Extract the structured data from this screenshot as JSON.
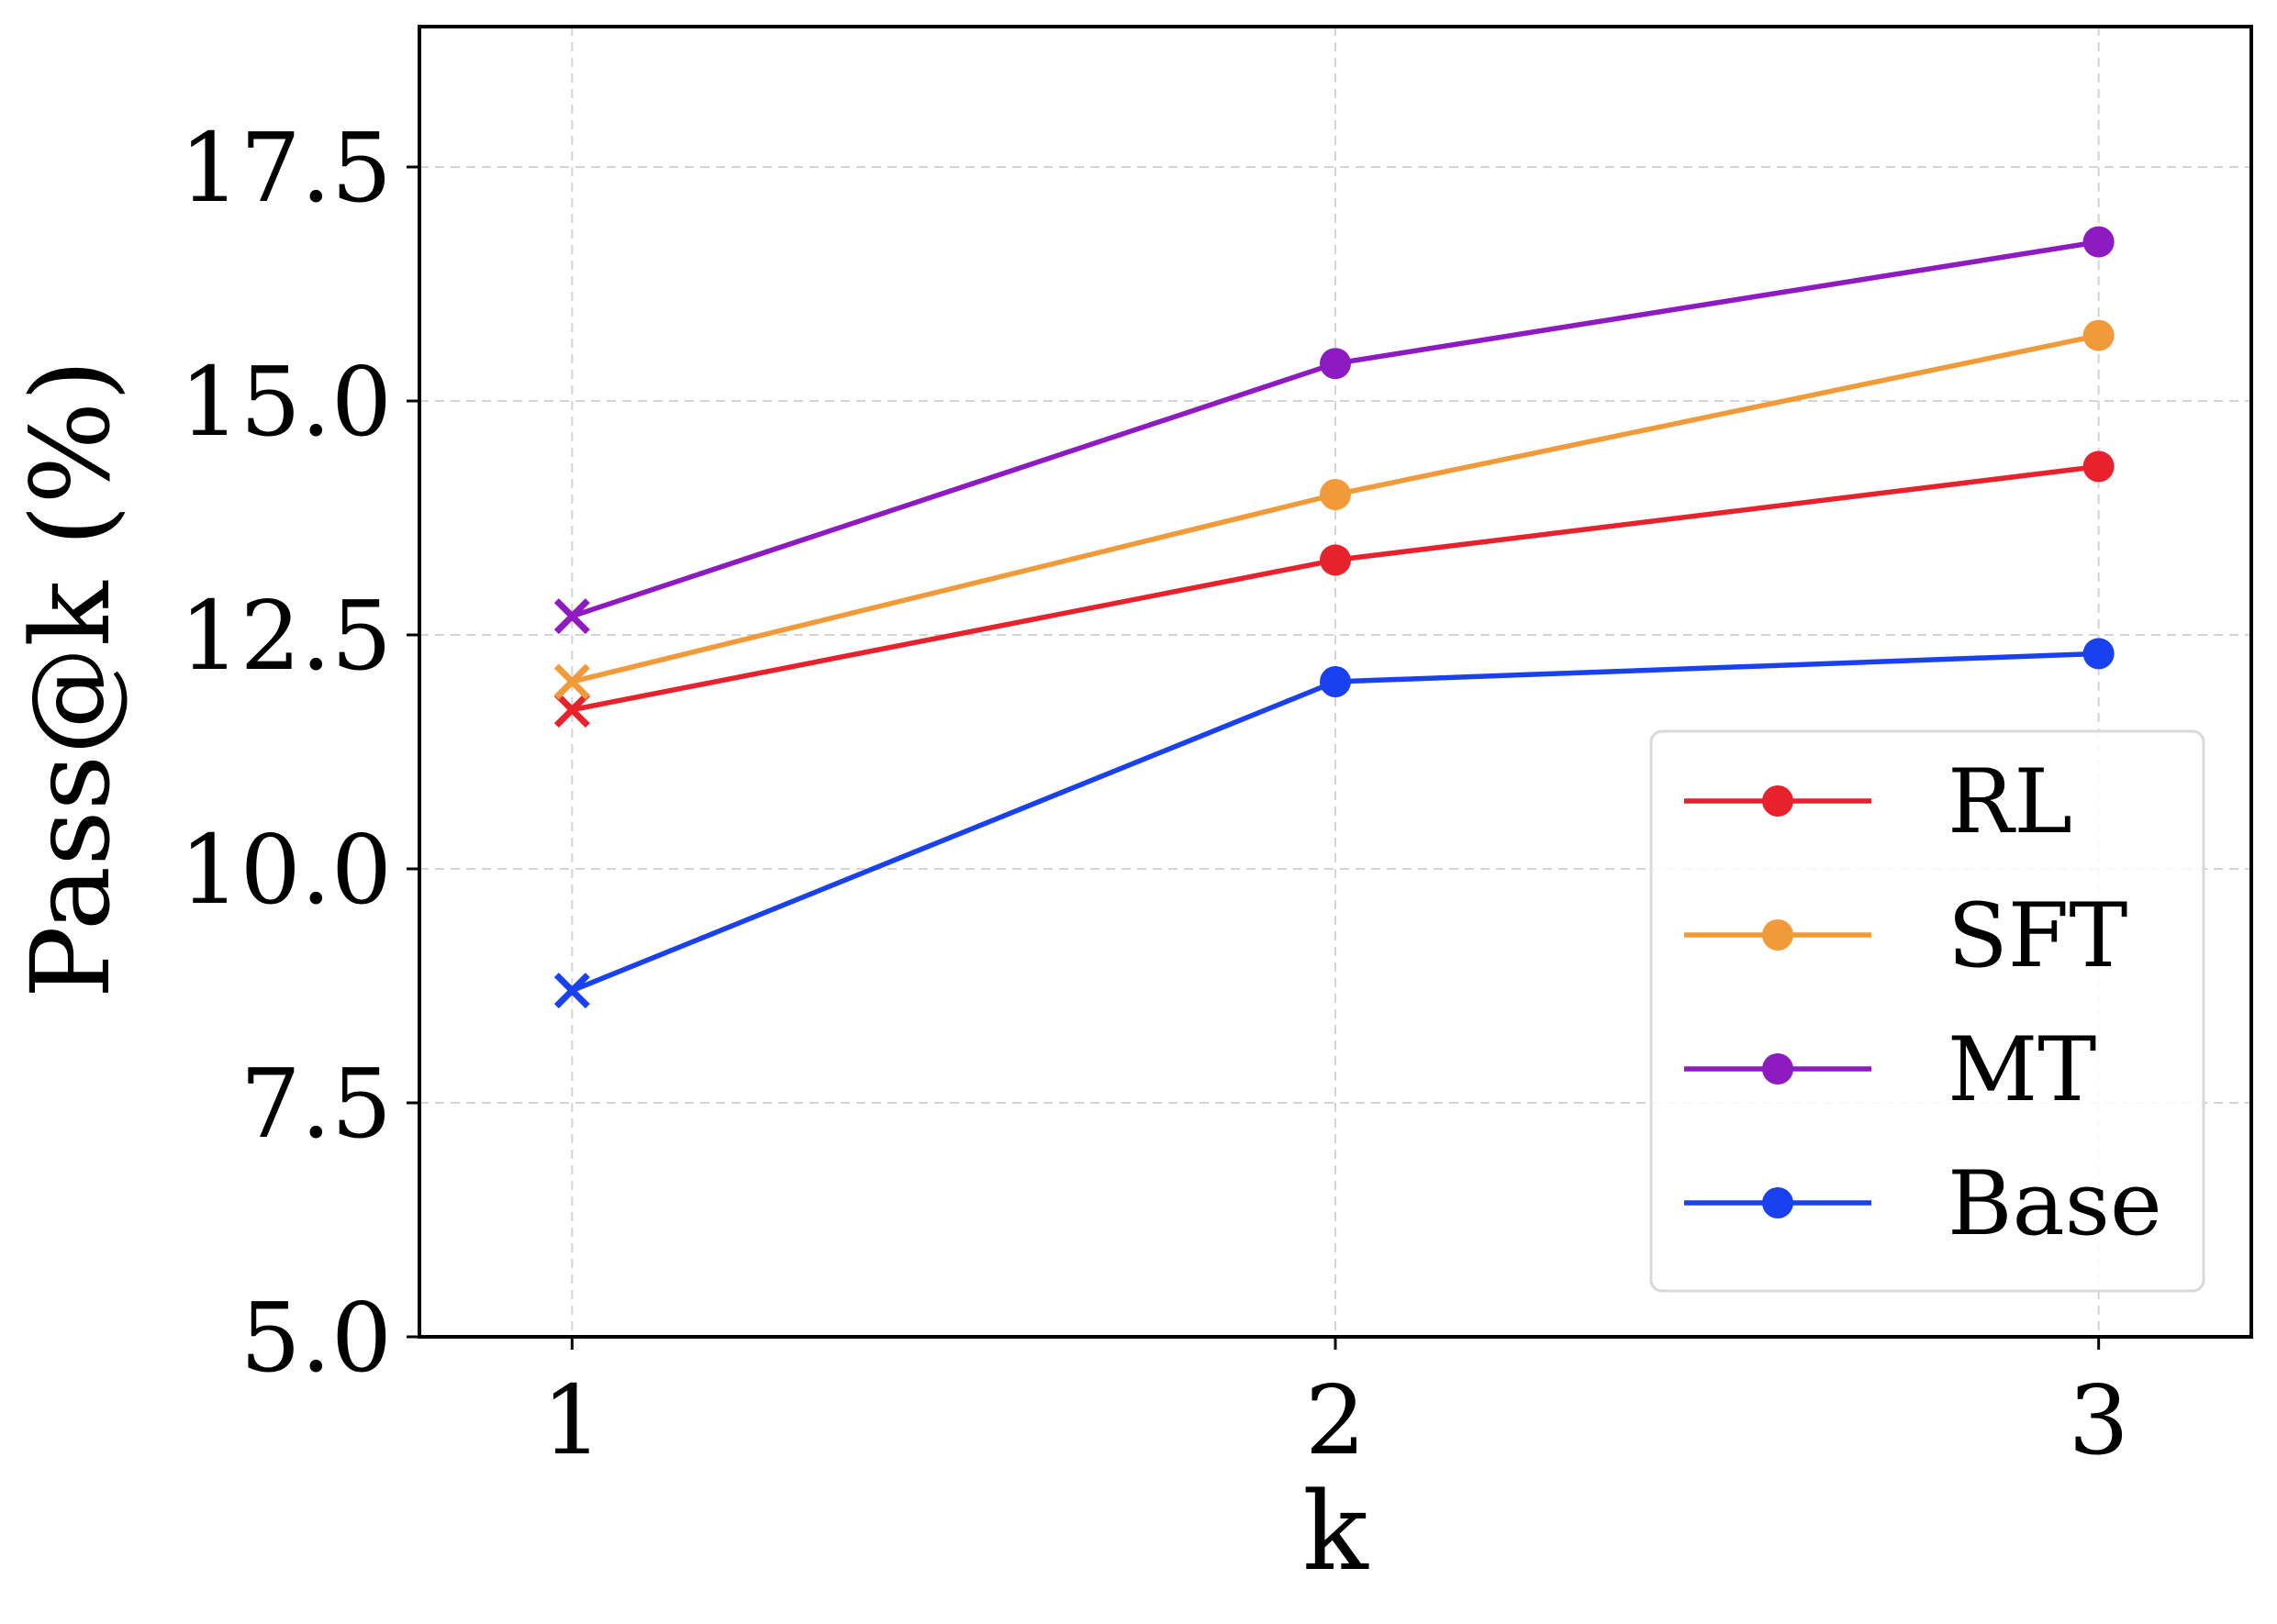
{
  "chart_data": {
    "type": "line",
    "xlabel": "k",
    "ylabel": "Pass@k (%)",
    "x": [
      1,
      2,
      3
    ],
    "xlim": [
      0.8,
      3.2
    ],
    "ylim": [
      5.0,
      19.0
    ],
    "xticks": [
      "1",
      "2",
      "3"
    ],
    "yticks": [
      "5.0",
      "7.5",
      "10.0",
      "12.5",
      "15.0",
      "17.5"
    ],
    "grid": true,
    "legend_position": "lower right",
    "series": [
      {
        "name": "RL",
        "color": "#e8222c",
        "values": [
          11.7,
          13.3,
          14.3
        ],
        "first_marker": "x",
        "marker": "circle"
      },
      {
        "name": "SFT",
        "color": "#f09a3a",
        "values": [
          12.0,
          14.0,
          15.7
        ],
        "first_marker": "x",
        "marker": "circle"
      },
      {
        "name": "MT",
        "color": "#8e1ac2",
        "values": [
          12.7,
          15.4,
          16.7
        ],
        "first_marker": "x",
        "marker": "circle"
      },
      {
        "name": "Base",
        "color": "#1a41f0",
        "values": [
          8.7,
          12.0,
          12.3
        ],
        "first_marker": "x",
        "marker": "circle"
      }
    ]
  }
}
